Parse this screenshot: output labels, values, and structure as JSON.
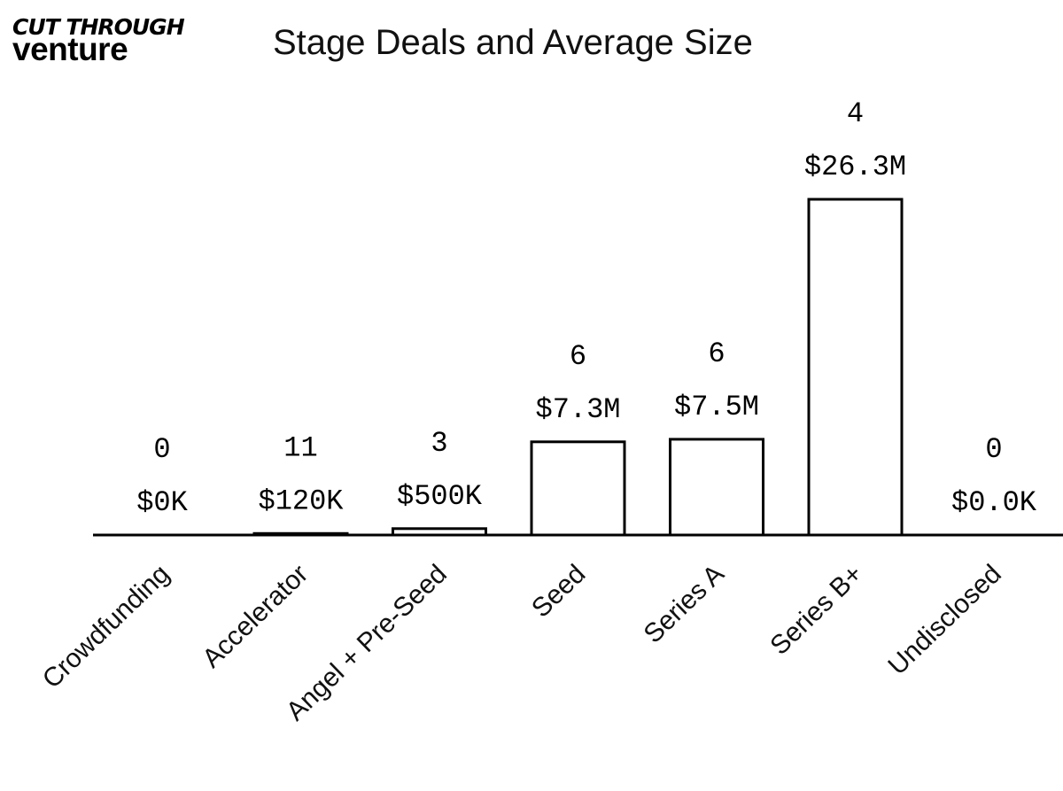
{
  "logo": {
    "line1": "CUT THROUGH",
    "line2": "venture"
  },
  "chart_data": {
    "type": "bar",
    "title": "Stage Deals and Average Size",
    "categories": [
      "Crowdfunding",
      "Accelerator",
      "Angel + Pre-Seed",
      "Seed",
      "Series A",
      "Series B+",
      "Undisclosed"
    ],
    "values": [
      0,
      0.12,
      0.5,
      7.3,
      7.5,
      26.3,
      0
    ],
    "value_unit": "$M average deal size",
    "deal_counts": [
      "0",
      "11",
      "3",
      "6",
      "6",
      "4",
      "0"
    ],
    "value_labels": [
      "$0K",
      "$120K",
      "$500K",
      "$7.3M",
      "$7.5M",
      "$26.3M",
      "$0.0K"
    ],
    "xlabel": "",
    "ylabel": "",
    "ylim": [
      0,
      26.3
    ],
    "grid": false,
    "colors": {
      "bar_fill": "#ffffff",
      "bar_stroke": "#000000"
    }
  }
}
